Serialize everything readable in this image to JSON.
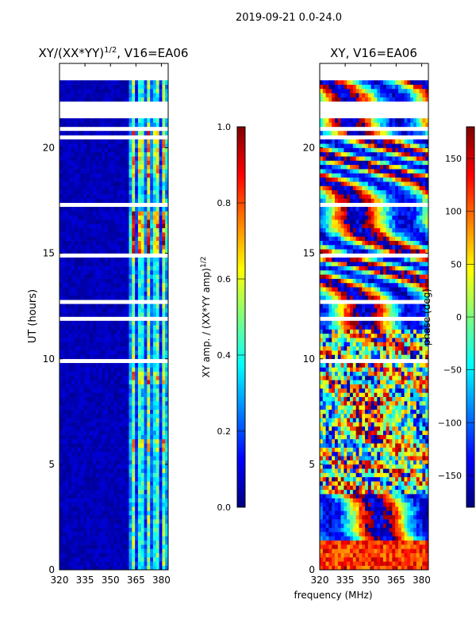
{
  "suptitle": "2019-09-21 0.0-24.0",
  "xlabel": "frequency (MHz)",
  "ylabel": "UT (hours)",
  "chart_data": [
    {
      "type": "heatmap",
      "title_main": "XY/(XX*YY)",
      "title_sup": "1/2",
      "title_tail": ", V16=EA06",
      "x_ticks": [
        "320",
        "335",
        "350",
        "365",
        "380"
      ],
      "x_tick_values": [
        320,
        335,
        350,
        365,
        380
      ],
      "xlim": [
        320,
        384
      ],
      "y_ticks": [
        "0",
        "5",
        "10",
        "15",
        "20"
      ],
      "y_tick_values": [
        0,
        5,
        10,
        15,
        20
      ],
      "ylim": [
        0,
        24
      ],
      "colorbar": {
        "label_main": "XY amp. / (XX*YY amp)",
        "label_sup": "1/2",
        "ticks": [
          "0.0",
          "0.2",
          "0.4",
          "0.6",
          "0.8",
          "1.0"
        ],
        "tick_values": [
          0.0,
          0.2,
          0.4,
          0.6,
          0.8,
          1.0
        ],
        "range": [
          0.0,
          1.0
        ]
      }
    },
    {
      "type": "heatmap",
      "title_main": "XY, V16=EA06",
      "x_ticks": [
        "320",
        "335",
        "350",
        "365",
        "380"
      ],
      "x_tick_values": [
        320,
        335,
        350,
        365,
        380
      ],
      "xlim": [
        320,
        384
      ],
      "y_ticks": [
        "0",
        "5",
        "10",
        "15",
        "20"
      ],
      "y_tick_values": [
        0,
        5,
        10,
        15,
        20
      ],
      "ylim": [
        0,
        24
      ],
      "colorbar": {
        "label_main": "phase (deg)",
        "ticks": [
          "−150",
          "−100",
          "−50",
          "0",
          "50",
          "100",
          "150"
        ],
        "tick_values": [
          -150,
          -100,
          -50,
          0,
          50,
          100,
          150
        ],
        "range": [
          -180,
          180
        ]
      }
    }
  ],
  "colors": {
    "jet_low": "#00007f",
    "jet_high": "#7f0000",
    "gap": "#ffffff",
    "axis": "#000000"
  }
}
